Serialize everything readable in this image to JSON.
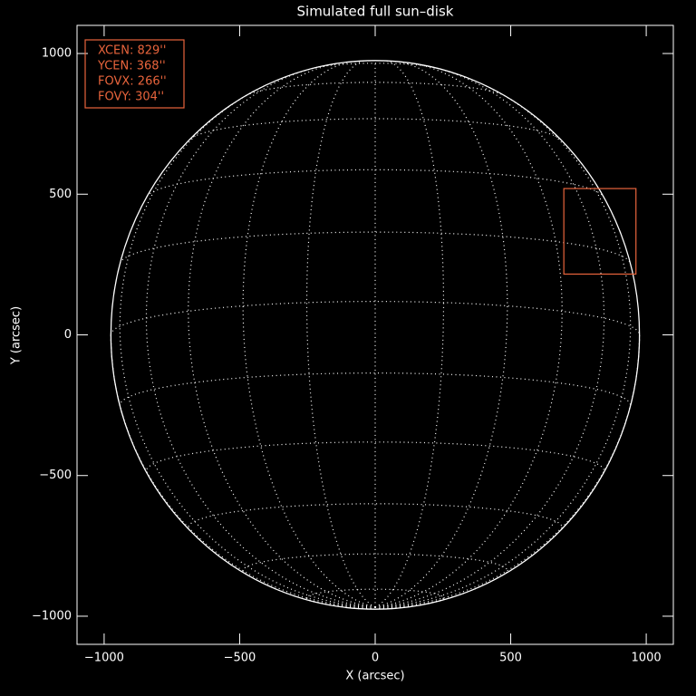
{
  "chart_data": {
    "type": "solar-disk",
    "title": "Simulated full sun–disk",
    "xlabel": "X (arcsec)",
    "ylabel": "Y (arcsec)",
    "xlim": [
      -1100,
      1100
    ],
    "ylim": [
      -1100,
      1100
    ],
    "xticks": [
      {
        "value": -1000,
        "label": "−1000"
      },
      {
        "value": -500,
        "label": "−500"
      },
      0,
      500,
      1000
    ],
    "yticks": [
      {
        "value": -1000,
        "label": "−1000"
      },
      {
        "value": -500,
        "label": "−500"
      },
      0,
      500,
      1000
    ],
    "radius": 975,
    "b0": -7,
    "grid_spacing": 15,
    "disk_color": "#ffffff",
    "box_color": "#e8643c",
    "fov": {
      "xcen": {
        "value": 829,
        "label": "XCEN:  829''"
      },
      "ycen": {
        "value": 368,
        "label": "YCEN:  368''"
      },
      "fovx": {
        "value": 266,
        "label": "FOVX:  266''"
      },
      "fovy": {
        "value": 304,
        "label": "FOVY:  304''"
      }
    }
  }
}
